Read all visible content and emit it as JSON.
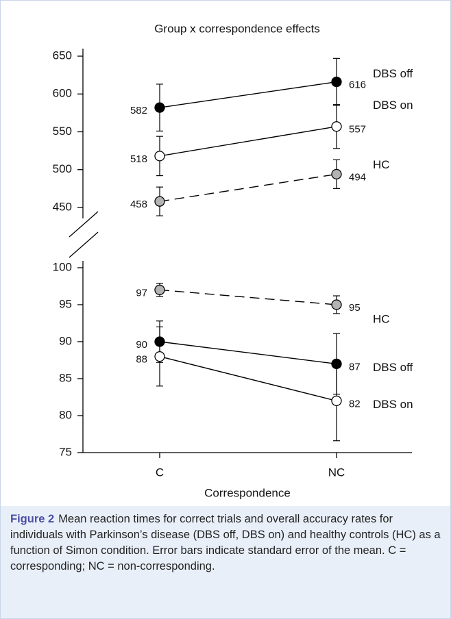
{
  "chart_data": [
    {
      "type": "line",
      "title": "Group x correspondence effects",
      "ylim": [
        450,
        650
      ],
      "yticks": [
        450,
        500,
        550,
        600,
        650
      ],
      "series": [
        {
          "name": "DBS off",
          "color": "#000000",
          "dashed": false,
          "values": [
            582,
            616
          ],
          "errors": [
            31,
            31
          ]
        },
        {
          "name": "DBS on",
          "color": "#ffffff",
          "dashed": false,
          "values": [
            518,
            557
          ],
          "errors": [
            26,
            29
          ]
        },
        {
          "name": "HC",
          "color": "#b3b3b3",
          "dashed": true,
          "values": [
            458,
            494
          ],
          "errors": [
            19,
            19
          ]
        }
      ]
    },
    {
      "type": "line",
      "x_label": "Correspondence",
      "categories": [
        "C",
        "NC"
      ],
      "ylim": [
        75,
        100
      ],
      "yticks": [
        75,
        80,
        85,
        90,
        95,
        100
      ],
      "series": [
        {
          "name": "HC",
          "color": "#b3b3b3",
          "dashed": true,
          "values": [
            97,
            95
          ],
          "errors": [
            0.9,
            1.2
          ]
        },
        {
          "name": "DBS off",
          "color": "#000000",
          "dashed": false,
          "values": [
            90,
            87
          ],
          "errors": [
            2.8,
            4.1
          ]
        },
        {
          "name": "DBS on",
          "color": "#ffffff",
          "dashed": false,
          "values": [
            88,
            82
          ],
          "errors": [
            4,
            5.4
          ]
        }
      ]
    }
  ],
  "caption": {
    "label": "Figure 2",
    "text": "Mean reaction times for correct trials and overall accuracy rates for individuals with Parkinson’s disease (DBS off, DBS on) and healthy controls (HC) as a function of Simon condition. Error bars indicate standard error of the mean. C = corresponding; NC = non-corresponding."
  }
}
